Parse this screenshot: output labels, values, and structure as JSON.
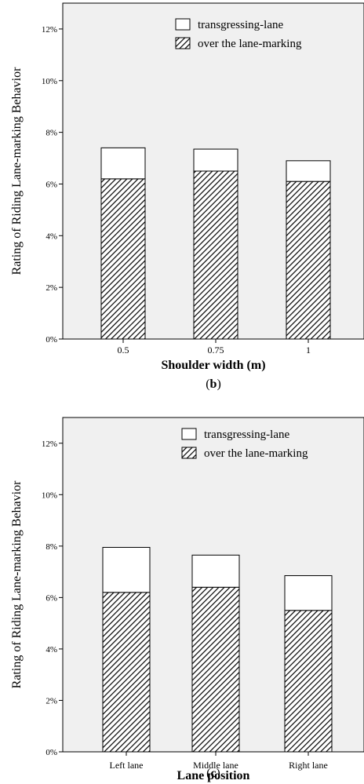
{
  "chart_data": [
    {
      "panel_label": "b",
      "type": "bar",
      "stacked": true,
      "categories": [
        "0.5",
        "0.75",
        "1"
      ],
      "series": [
        {
          "name": "over the lane-marking",
          "values": [
            6.2,
            6.5,
            6.1
          ],
          "pattern": "diagonal-hatch"
        },
        {
          "name": "transgressing-lane",
          "values": [
            1.2,
            0.85,
            0.8
          ],
          "pattern": "none"
        }
      ],
      "xlabel": "Shoulder width (m)",
      "ylabel": "Rating of Riding Lane-marking Behavior",
      "yticks": [
        "0%",
        "2%",
        "4%",
        "6%",
        "8%",
        "10%",
        "12%"
      ],
      "ylim": [
        0,
        13
      ],
      "grid": false,
      "legend_position": "top-right"
    },
    {
      "panel_label": "c",
      "type": "bar",
      "stacked": true,
      "categories": [
        "Left lane",
        "Middle lane",
        "Right lane"
      ],
      "series": [
        {
          "name": "over the lane-marking",
          "values": [
            6.2,
            6.4,
            5.5
          ],
          "pattern": "diagonal-hatch"
        },
        {
          "name": "transgressing-lane",
          "values": [
            1.75,
            1.25,
            1.35
          ],
          "pattern": "none"
        }
      ],
      "xlabel": "Lane position",
      "ylabel": "Rating of Riding Lane-marking Behavior",
      "yticks": [
        "0%",
        "2%",
        "4%",
        "6%",
        "8%",
        "10%",
        "12%"
      ],
      "ylim": [
        0,
        13
      ],
      "grid": false,
      "legend_position": "top-right"
    }
  ],
  "colors": {
    "plot_background": "#f0f0f0",
    "bar_fill": "#ffffff",
    "bar_outline": "#000000",
    "hatch": "#000000"
  }
}
